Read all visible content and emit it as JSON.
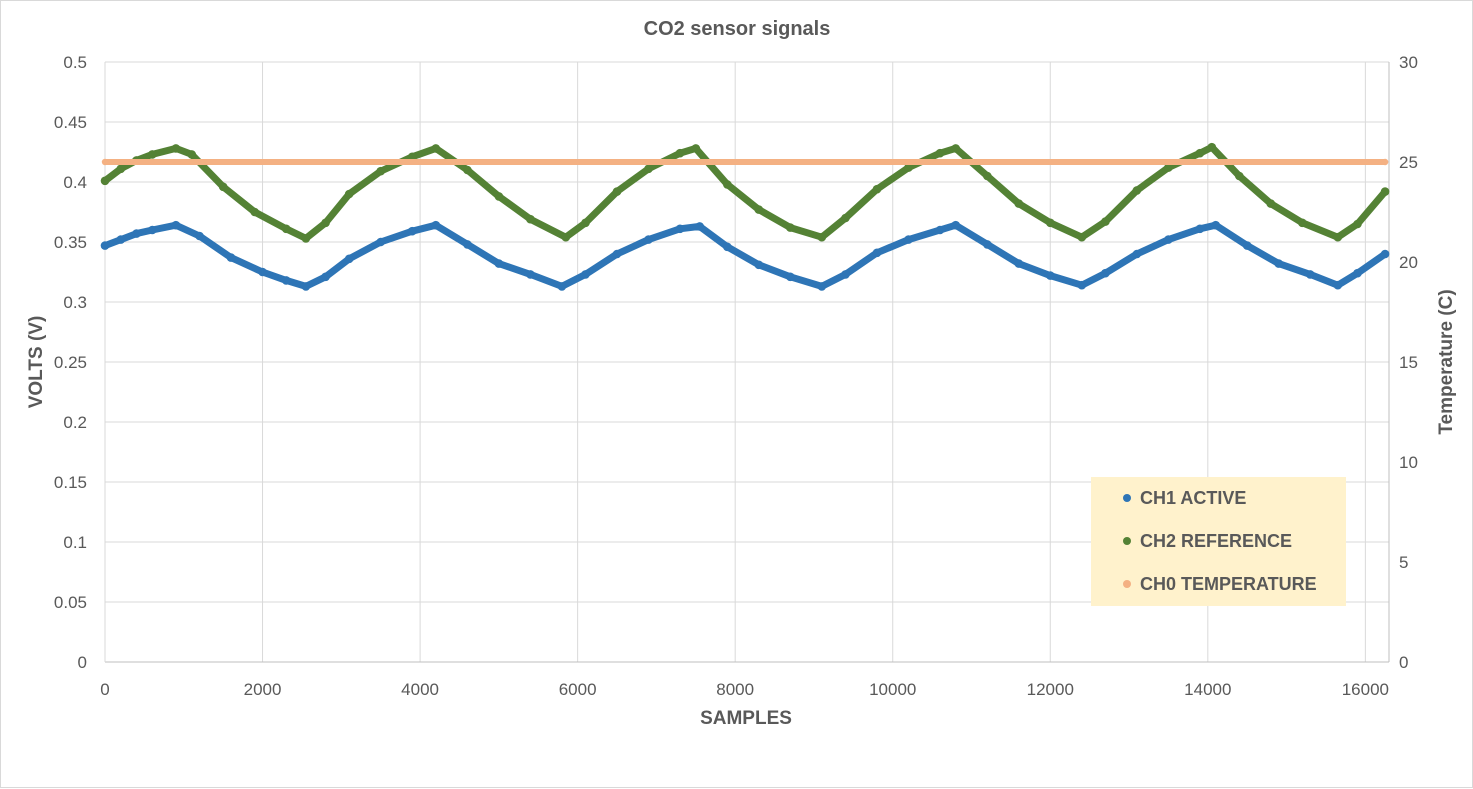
{
  "chart_data": {
    "type": "scatter",
    "title": "CO2 sensor signals",
    "xlabel": "SAMPLES",
    "ylabel": "VOLTS (V)",
    "y2label": "Temperature (C)",
    "xlim": [
      0,
      16300
    ],
    "ylim": [
      0,
      0.5
    ],
    "y2lim": [
      0,
      30
    ],
    "xticks": [
      "0",
      "2000",
      "4000",
      "6000",
      "8000",
      "10000",
      "12000",
      "14000",
      "16000"
    ],
    "xtick_values": [
      0,
      2000,
      4000,
      6000,
      8000,
      10000,
      12000,
      14000,
      16000
    ],
    "yticks": [
      "0",
      "0.05",
      "0.1",
      "0.15",
      "0.2",
      "0.25",
      "0.3",
      "0.35",
      "0.4",
      "0.45",
      "0.5"
    ],
    "ytick_values": [
      0,
      0.05,
      0.1,
      0.15,
      0.2,
      0.25,
      0.3,
      0.35,
      0.4,
      0.45,
      0.5
    ],
    "y2ticks": [
      "0",
      "5",
      "10",
      "15",
      "20",
      "25",
      "30"
    ],
    "y2tick_values": [
      0,
      5,
      10,
      15,
      20,
      25,
      30
    ],
    "grid": true,
    "legend_position": "bottom-right",
    "legend_background": "#fff2cc",
    "series": [
      {
        "name": "CH1 ACTIVE",
        "axis": "left",
        "color": "#2e75b6",
        "x": [
          0,
          200,
          400,
          600,
          900,
          1200,
          1600,
          2000,
          2300,
          2550,
          2800,
          3100,
          3500,
          3900,
          4200,
          4600,
          5000,
          5400,
          5800,
          6100,
          6500,
          6900,
          7300,
          7550,
          7900,
          8300,
          8700,
          9100,
          9400,
          9800,
          10200,
          10600,
          10800,
          11200,
          11600,
          12000,
          12400,
          12700,
          13100,
          13500,
          13900,
          14100,
          14500,
          14900,
          15300,
          15650,
          15900,
          16250
        ],
        "y": [
          0.347,
          0.352,
          0.357,
          0.36,
          0.364,
          0.355,
          0.337,
          0.325,
          0.318,
          0.313,
          0.321,
          0.336,
          0.35,
          0.359,
          0.364,
          0.348,
          0.332,
          0.323,
          0.313,
          0.323,
          0.34,
          0.352,
          0.361,
          0.363,
          0.346,
          0.331,
          0.321,
          0.313,
          0.323,
          0.341,
          0.352,
          0.36,
          0.364,
          0.348,
          0.332,
          0.322,
          0.314,
          0.324,
          0.34,
          0.352,
          0.361,
          0.364,
          0.347,
          0.332,
          0.323,
          0.314,
          0.324,
          0.34
        ]
      },
      {
        "name": "CH2 REFERENCE",
        "axis": "left",
        "color": "#548235",
        "x": [
          0,
          200,
          400,
          600,
          900,
          1100,
          1500,
          1900,
          2300,
          2550,
          2800,
          3100,
          3500,
          3900,
          4200,
          4600,
          5000,
          5400,
          5850,
          6100,
          6500,
          6900,
          7300,
          7500,
          7900,
          8300,
          8700,
          9100,
          9400,
          9800,
          10200,
          10600,
          10800,
          11200,
          11600,
          12000,
          12400,
          12700,
          13100,
          13500,
          13900,
          14050,
          14400,
          14800,
          15200,
          15650,
          15900,
          16250
        ],
        "y": [
          0.401,
          0.411,
          0.418,
          0.423,
          0.428,
          0.423,
          0.396,
          0.375,
          0.361,
          0.353,
          0.366,
          0.39,
          0.409,
          0.421,
          0.428,
          0.41,
          0.388,
          0.369,
          0.354,
          0.366,
          0.392,
          0.411,
          0.424,
          0.428,
          0.398,
          0.377,
          0.362,
          0.354,
          0.37,
          0.394,
          0.412,
          0.424,
          0.428,
          0.405,
          0.382,
          0.366,
          0.354,
          0.367,
          0.393,
          0.412,
          0.424,
          0.429,
          0.405,
          0.382,
          0.366,
          0.354,
          0.365,
          0.392
        ]
      },
      {
        "name": "CH0 TEMPERATURE",
        "axis": "right",
        "color": "#f4b183",
        "x": [
          0,
          16250
        ],
        "y": [
          25,
          25
        ]
      }
    ]
  }
}
